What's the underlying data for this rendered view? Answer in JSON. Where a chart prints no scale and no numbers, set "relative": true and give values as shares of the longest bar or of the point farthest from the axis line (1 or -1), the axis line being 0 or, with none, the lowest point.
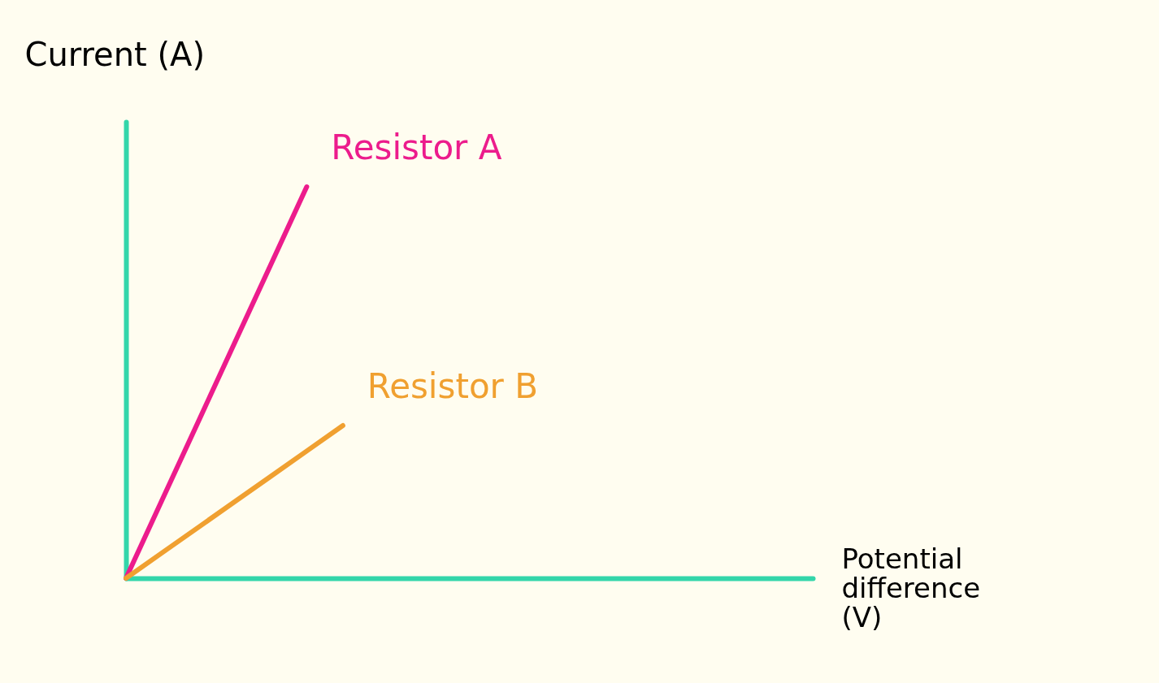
{
  "chart_data": {
    "type": "line",
    "relative": true,
    "xlabel": "Potential difference (V)",
    "ylabel": "Current (A)",
    "categories": [
      null,
      null,
      null,
      null,
      null,
      null,
      null,
      null,
      null,
      null,
      null,
      null,
      null,
      null,
      null,
      null,
      null,
      null,
      null,
      null
    ],
    "series": [
      {
        "name": "Resistor A",
        "color": "#ec1c8c",
        "values": [
          0,
          0.2,
          0.4,
          0.6,
          0.8,
          1,
          null,
          null,
          null,
          null,
          null,
          null,
          null,
          null,
          null,
          null,
          null,
          null,
          null,
          null
        ]
      },
      {
        "name": "Resistor B",
        "color": "#f0a030",
        "values": [
          0,
          0.065,
          0.13,
          0.195,
          0.26,
          0.325,
          0.39,
          null,
          null,
          null,
          null,
          null,
          null,
          null,
          null,
          null,
          null,
          null,
          null,
          null
        ]
      }
    ]
  }
}
